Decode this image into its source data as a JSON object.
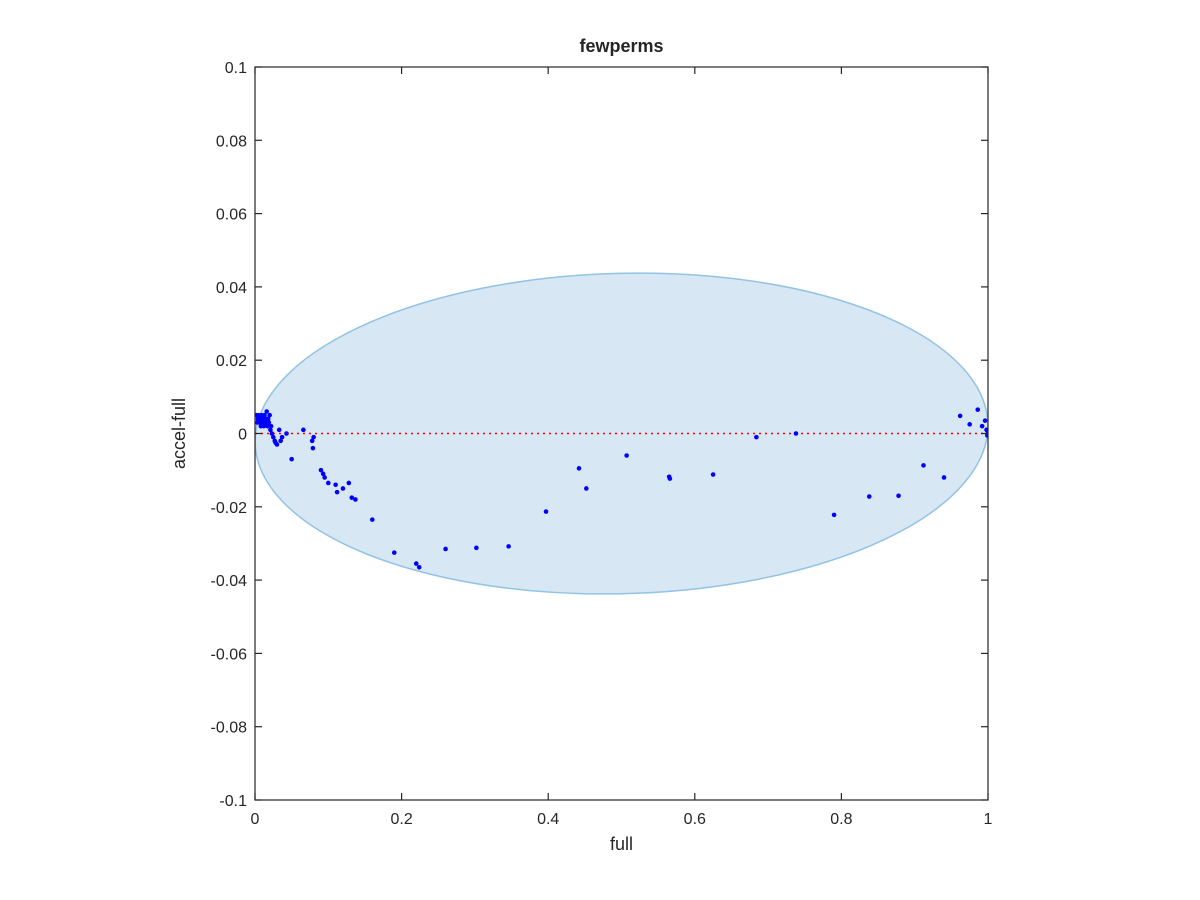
{
  "chart_data": {
    "type": "scatter",
    "title": "fewperms",
    "xlabel": "full",
    "ylabel": "accel-full",
    "xlim": [
      0,
      1
    ],
    "ylim": [
      -0.1,
      0.1
    ],
    "xticks": [
      0,
      0.2,
      0.4,
      0.6,
      0.8,
      1
    ],
    "xtick_labels": [
      "0",
      "0.2",
      "0.4",
      "0.6",
      "0.8",
      "1"
    ],
    "yticks": [
      -0.1,
      -0.08,
      -0.06,
      -0.04,
      -0.02,
      0,
      0.02,
      0.04,
      0.06,
      0.08,
      0.1
    ],
    "ytick_labels": [
      "-0.1",
      "-0.08",
      "-0.06",
      "-0.04",
      "-0.02",
      "0",
      "0.02",
      "0.04",
      "0.06",
      "0.08",
      "0.1"
    ],
    "grid": false,
    "reference_line": {
      "y": 0,
      "style": "dotted",
      "color": "#ff0000"
    },
    "ellipse": {
      "cx": 0.5,
      "cy": 0,
      "rx": 0.5,
      "ry": 0.0437,
      "angle_deg": -1.5,
      "fill": "#d7e7f4",
      "stroke": "#93c3e4"
    },
    "point_color": "#0000ff",
    "points": [
      [
        0.002,
        0.005
      ],
      [
        0.003,
        0.003
      ],
      [
        0.004,
        0.004
      ],
      [
        0.005,
        0.005
      ],
      [
        0.006,
        0.003
      ],
      [
        0.007,
        0.004
      ],
      [
        0.008,
        0.002
      ],
      [
        0.009,
        0.005
      ],
      [
        0.01,
        0.003
      ],
      [
        0.011,
        0.004
      ],
      [
        0.012,
        0.002
      ],
      [
        0.013,
        0.005
      ],
      [
        0.014,
        0.003
      ],
      [
        0.015,
        0.004
      ],
      [
        0.016,
        0.006
      ],
      [
        0.017,
        0.002
      ],
      [
        0.018,
        0.004
      ],
      [
        0.019,
        0.003
      ],
      [
        0.02,
        0.005
      ],
      [
        0.021,
        0.001
      ],
      [
        0.022,
        0.002
      ],
      [
        0.023,
        0.0
      ],
      [
        0.025,
        -0.001
      ],
      [
        0.027,
        -0.002
      ],
      [
        0.028,
        -0.0025
      ],
      [
        0.03,
        -0.003
      ],
      [
        0.033,
        0.001
      ],
      [
        0.035,
        -0.002
      ],
      [
        0.037,
        -0.001
      ],
      [
        0.043,
        0.0
      ],
      [
        0.05,
        -0.007
      ],
      [
        0.066,
        0.001
      ],
      [
        0.078,
        -0.002
      ],
      [
        0.079,
        -0.004
      ],
      [
        0.08,
        -0.001
      ],
      [
        0.09,
        -0.01
      ],
      [
        0.093,
        -0.011
      ],
      [
        0.095,
        -0.012
      ],
      [
        0.1,
        -0.0135
      ],
      [
        0.11,
        -0.014
      ],
      [
        0.112,
        -0.016
      ],
      [
        0.12,
        -0.015
      ],
      [
        0.128,
        -0.0135
      ],
      [
        0.132,
        -0.0175
      ],
      [
        0.137,
        -0.018
      ],
      [
        0.16,
        -0.0235
      ],
      [
        0.19,
        -0.0325
      ],
      [
        0.22,
        -0.0355
      ],
      [
        0.224,
        -0.0365
      ],
      [
        0.26,
        -0.0315
      ],
      [
        0.302,
        -0.0312
      ],
      [
        0.346,
        -0.0308
      ],
      [
        0.397,
        -0.0213
      ],
      [
        0.442,
        -0.0095
      ],
      [
        0.452,
        -0.015
      ],
      [
        0.507,
        -0.006
      ],
      [
        0.565,
        -0.0118
      ],
      [
        0.566,
        -0.0123
      ],
      [
        0.625,
        -0.0112
      ],
      [
        0.684,
        -0.001
      ],
      [
        0.738,
        0.0
      ],
      [
        0.79,
        -0.0222
      ],
      [
        0.838,
        -0.0172
      ],
      [
        0.878,
        -0.017
      ],
      [
        0.912,
        -0.0087
      ],
      [
        0.94,
        -0.012
      ],
      [
        0.962,
        0.0048
      ],
      [
        0.975,
        0.0025
      ],
      [
        0.986,
        0.0065
      ],
      [
        0.992,
        0.002
      ],
      [
        0.996,
        0.0035
      ],
      [
        0.998,
        0.001
      ],
      [
        0.999,
        -0.0005
      ],
      [
        1.0,
        0.0002
      ]
    ]
  }
}
